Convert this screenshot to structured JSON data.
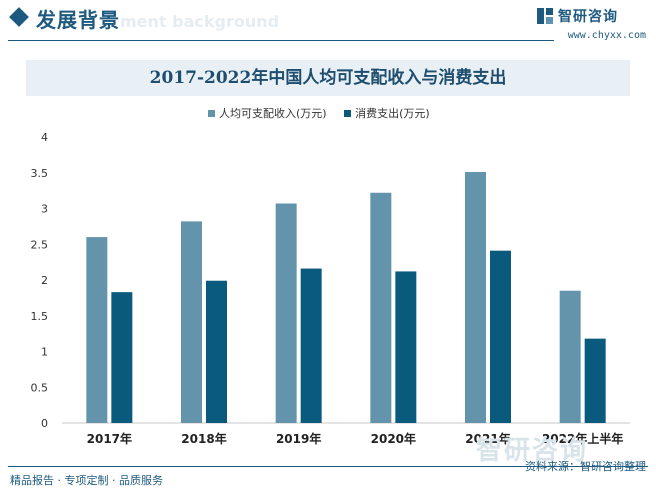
{
  "header": {
    "title": "发展背景",
    "title_shadow": "ment background",
    "brand_name": "智研咨询",
    "brand_url": "www.chyxx.com"
  },
  "chart_data": {
    "type": "bar",
    "title": "2017-2022年中国人均可支配收入与消费支出",
    "categories": [
      "2017年",
      "2018年",
      "2019年",
      "2020年",
      "2021年",
      "2022年上半年"
    ],
    "series": [
      {
        "name": "人均可支配收入(万元)",
        "color": "#6394ab",
        "values": [
          2.6,
          2.82,
          3.07,
          3.22,
          3.51,
          1.85
        ]
      },
      {
        "name": "消费支出(万元)",
        "color": "#0a5a7e",
        "values": [
          1.83,
          1.99,
          2.16,
          2.12,
          2.41,
          1.18
        ]
      }
    ],
    "ylim": [
      0,
      4
    ],
    "yticks": [
      "0",
      "0.5",
      "1",
      "1.5",
      "2",
      "2.5",
      "3",
      "3.5",
      "4"
    ],
    "xlabel": "",
    "ylabel": "",
    "grid": false,
    "legend": "top-center"
  },
  "footer": {
    "left": "精品报告 · 专项定制 · 品质服务",
    "right": "资料来源：智研咨询整理",
    "watermark": "智研咨询"
  }
}
